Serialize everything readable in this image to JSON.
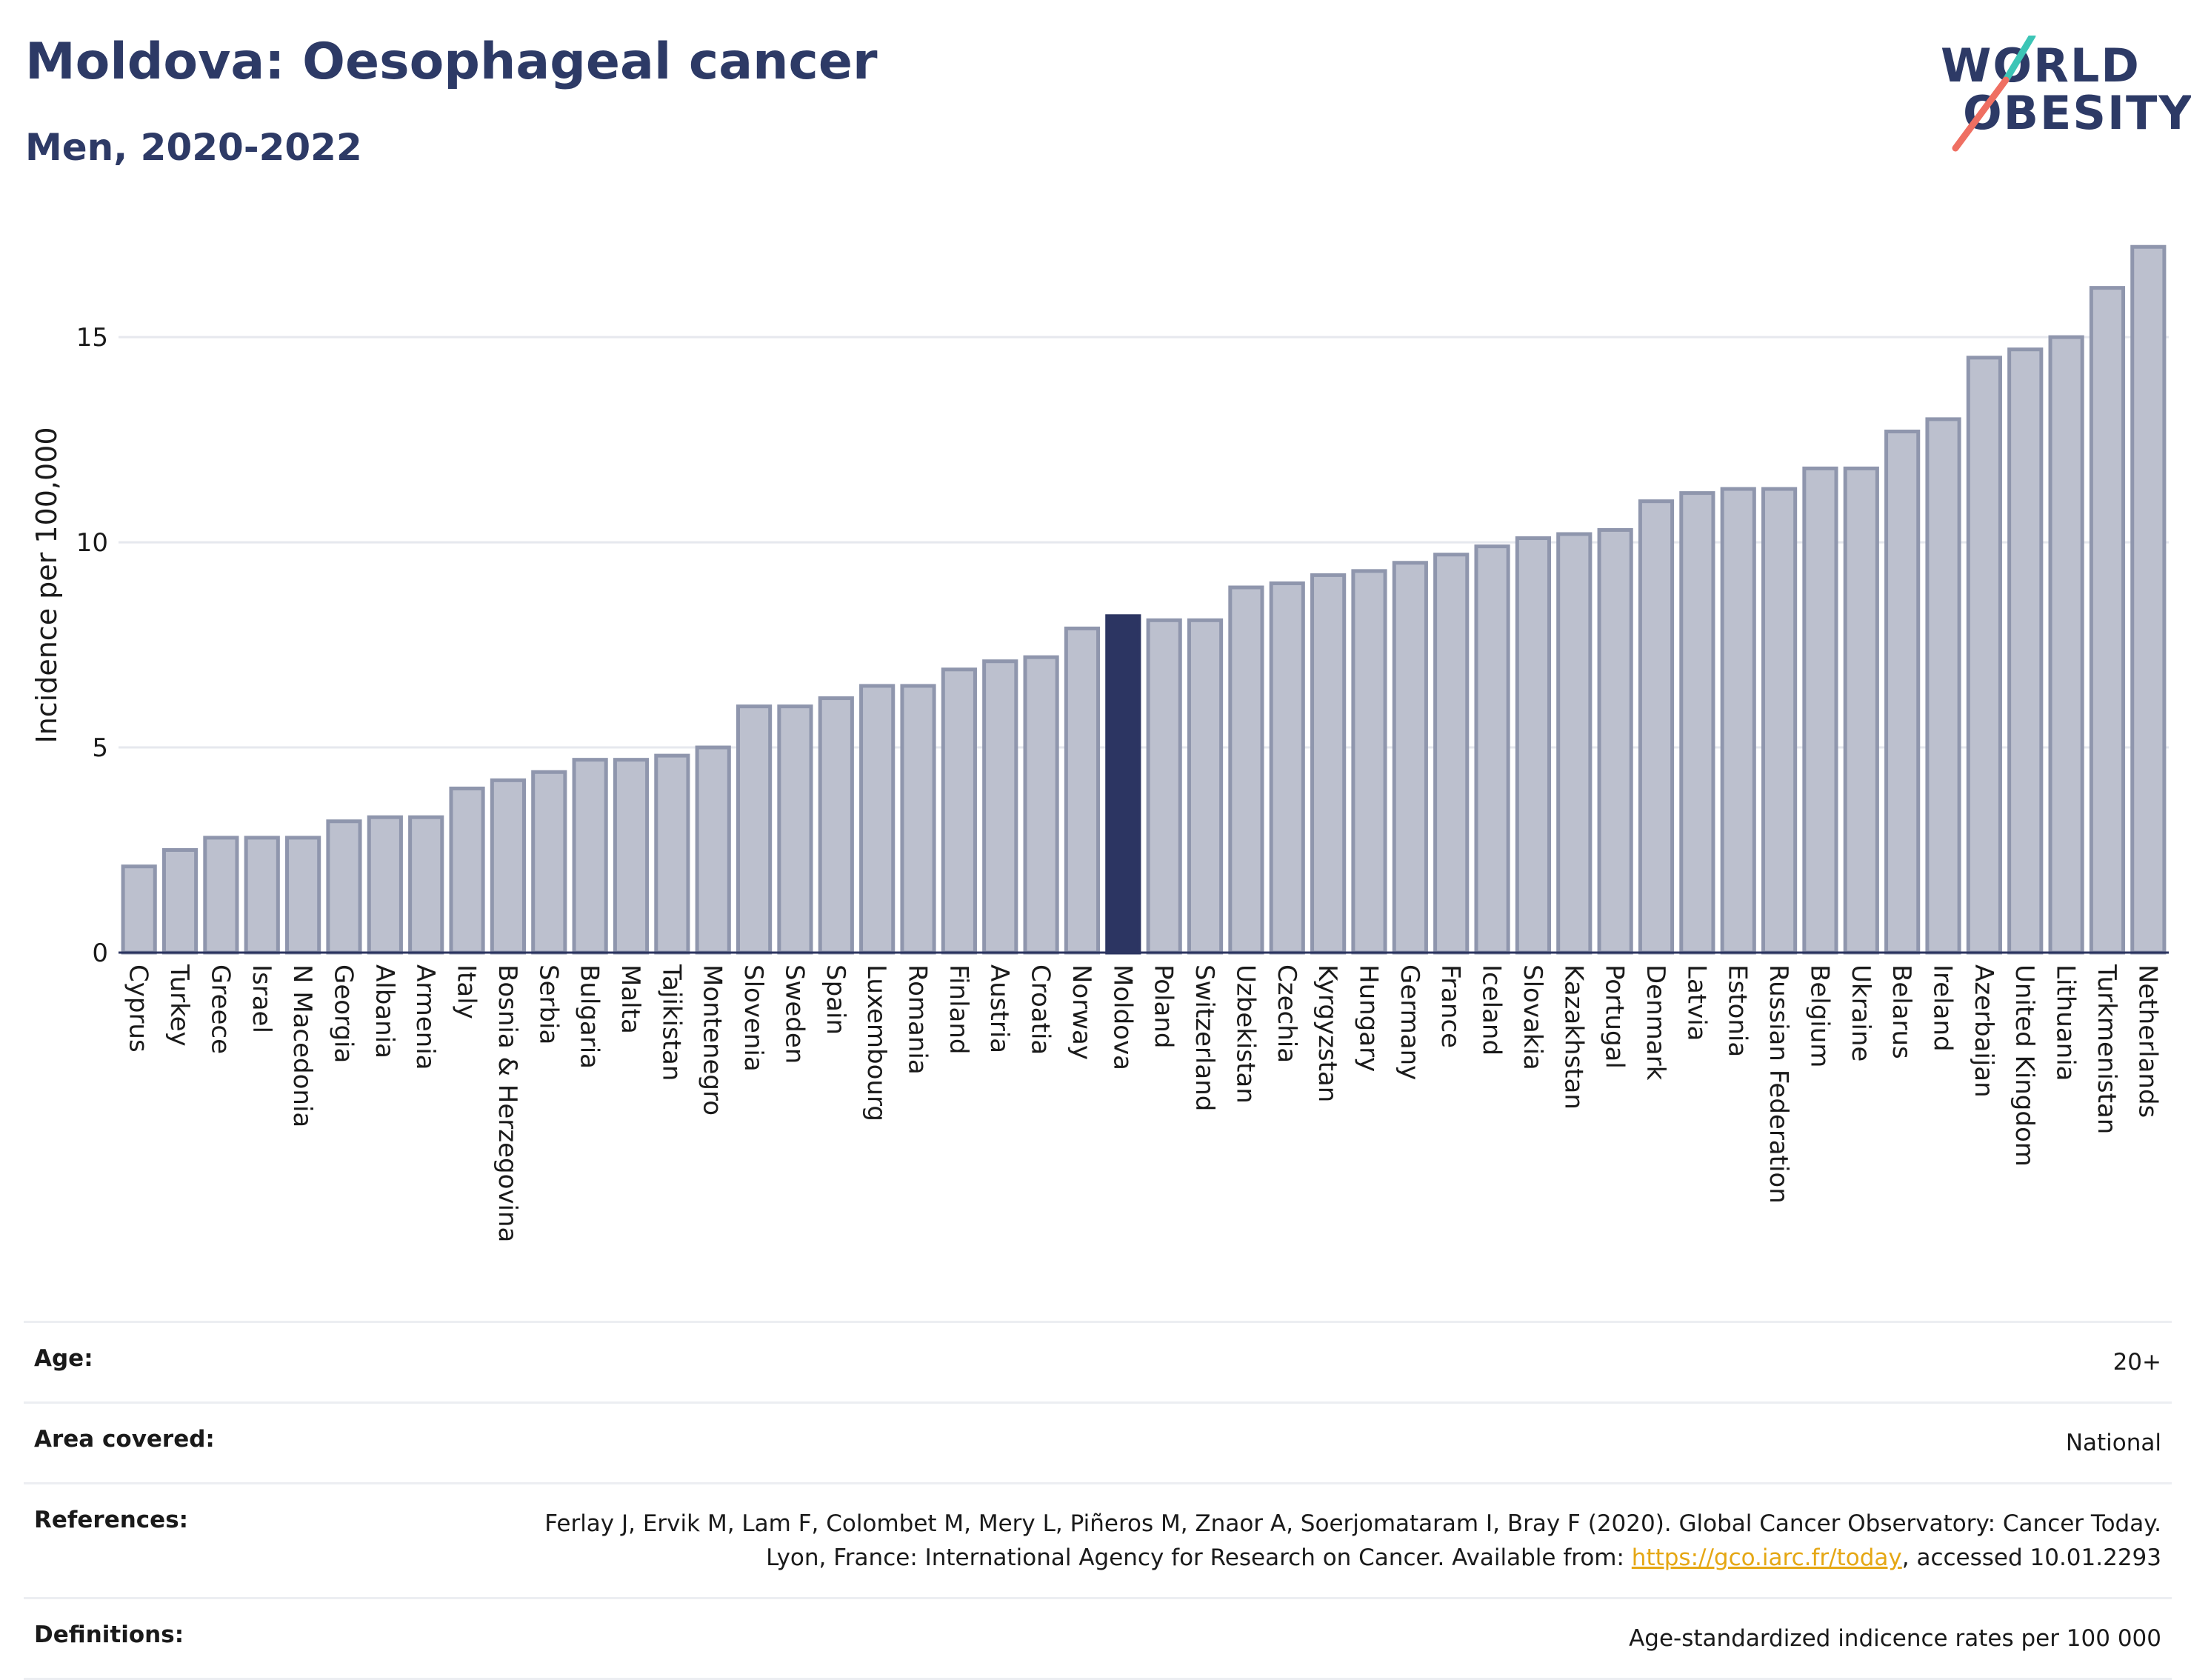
{
  "header": {
    "title": "Moldova: Oesophageal cancer",
    "subtitle": "Men, 2020-2022"
  },
  "logo": {
    "line1": "WORLD",
    "line2": "OBESITY"
  },
  "colors": {
    "bar": "#bcc0ce",
    "bar_stroke": "#8f96ad",
    "highlight": "#2c3562",
    "logo_teal": "#3cc5b6",
    "logo_coral": "#ef6f62"
  },
  "chart_data": {
    "type": "bar",
    "ylabel": "Incidence per 100,000",
    "ylim": [
      0,
      17.8
    ],
    "yticks": [
      0,
      5,
      10,
      15
    ],
    "grid": true,
    "highlight": "Moldova",
    "categories": [
      "Cyprus",
      "Turkey",
      "Greece",
      "Israel",
      "N Macedonia",
      "Georgia",
      "Albania",
      "Armenia",
      "Italy",
      "Bosnia & Herzegovina",
      "Serbia",
      "Bulgaria",
      "Malta",
      "Tajikistan",
      "Montenegro",
      "Slovenia",
      "Sweden",
      "Spain",
      "Luxembourg",
      "Romania",
      "Finland",
      "Austria",
      "Croatia",
      "Norway",
      "Moldova",
      "Poland",
      "Switzerland",
      "Uzbekistan",
      "Czechia",
      "Kyrgyzstan",
      "Hungary",
      "Germany",
      "France",
      "Iceland",
      "Slovakia",
      "Kazakhstan",
      "Portugal",
      "Denmark",
      "Latvia",
      "Estonia",
      "Russian Federation",
      "Belgium",
      "Ukraine",
      "Belarus",
      "Ireland",
      "Azerbaijan",
      "United Kingdom",
      "Lithuania",
      "Turkmenistan",
      "Netherlands"
    ],
    "values": [
      2.1,
      2.5,
      2.8,
      2.8,
      2.8,
      3.2,
      3.3,
      3.3,
      4.0,
      4.2,
      4.4,
      4.7,
      4.7,
      4.8,
      5.0,
      6.0,
      6.0,
      6.2,
      6.5,
      6.5,
      6.9,
      7.1,
      7.2,
      7.9,
      8.2,
      8.1,
      8.1,
      8.9,
      9.0,
      9.2,
      9.3,
      9.5,
      9.7,
      9.9,
      10.1,
      10.2,
      10.3,
      11.0,
      11.2,
      11.3,
      11.3,
      11.8,
      11.8,
      12.7,
      13.0,
      14.5,
      14.7,
      15.0,
      16.2,
      17.2
    ]
  },
  "info": {
    "age_label": "Age:",
    "age_value": "20+",
    "area_label": "Area covered:",
    "area_value": "National",
    "ref_label": "References:",
    "ref_text_1": "Ferlay J, Ervik M, Lam F, Colombet M, Mery L, Piñeros M, Znaor A, Soerjomataram I, Bray F (2020). Global Cancer Observatory: Cancer Today. Lyon, France: International Agency for Research on Cancer. Available from: ",
    "ref_link": "https://gco.iarc.fr/today",
    "ref_text_2": ", accessed 10.01.2293",
    "def_label": "Definitions:",
    "def_value": "Age-standardized indicence rates per 100 000"
  }
}
